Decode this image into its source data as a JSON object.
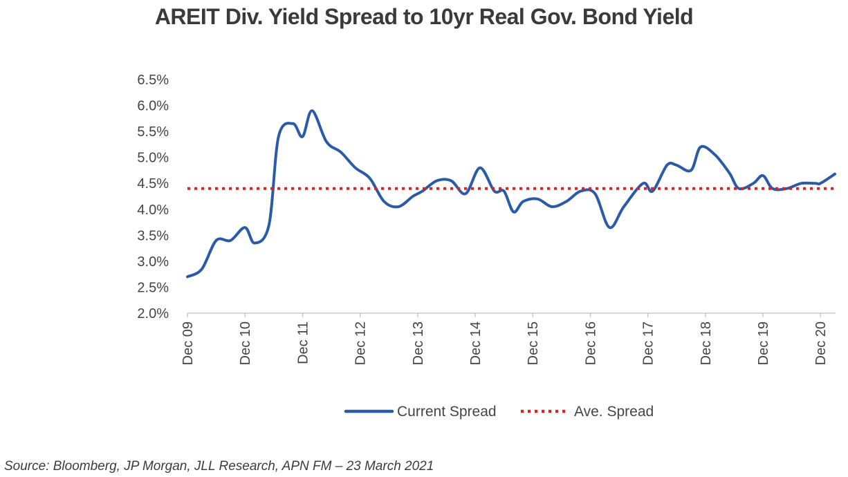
{
  "chart_data": {
    "type": "line",
    "title": "AREIT Div. Yield Spread to 10yr Real Gov. Bond Yield",
    "xlabel": "",
    "ylabel": "",
    "ylim": [
      2.0,
      6.5
    ],
    "yticks": [
      "2.0%",
      "2.5%",
      "3.0%",
      "3.5%",
      "4.0%",
      "4.5%",
      "5.0%",
      "5.5%",
      "6.0%",
      "6.5%"
    ],
    "xlim": [
      "Dec 09",
      "Mar 21"
    ],
    "xticks": [
      "Dec 09",
      "Dec 10",
      "Dec 11",
      "Dec 12",
      "Dec 13",
      "Dec 14",
      "Dec 15",
      "Dec 16",
      "Dec 17",
      "Dec 18",
      "Dec 19",
      "Dec 20"
    ],
    "grid": false,
    "legend_placement": "bottom",
    "series": [
      {
        "name": "Current Spread",
        "color": "#2a5ba8",
        "style": "solid",
        "x": [
          "Dec 09",
          "Mar 10",
          "Jun 10",
          "Sep 10",
          "Dec 10",
          "Feb 11",
          "May 11",
          "Jul 11",
          "Oct 11",
          "Dec 11",
          "Feb 12",
          "May 12",
          "Aug 12",
          "Nov 12",
          "Feb 13",
          "May 13",
          "Aug 13",
          "Nov 13",
          "Jan 14",
          "Apr 14",
          "Jul 14",
          "Oct 14",
          "Jan 15",
          "Apr 15",
          "Jun 15",
          "Aug 15",
          "Oct 15",
          "Jan 16",
          "Apr 16",
          "Jul 16",
          "Oct 16",
          "Jan 17",
          "Apr 17",
          "Jul 17",
          "Nov 17",
          "Jan 18",
          "Apr 18",
          "Jun 18",
          "Sep 18",
          "Nov 18",
          "Feb 19",
          "May 19",
          "Jul 19",
          "Oct 19",
          "Dec 19",
          "Feb 20",
          "May 20",
          "Aug 20",
          "Nov 20",
          "Dec 20",
          "Mar 21"
        ],
        "values": [
          2.7,
          2.85,
          3.4,
          3.4,
          3.65,
          3.35,
          3.7,
          5.4,
          5.65,
          5.4,
          5.9,
          5.3,
          5.1,
          4.8,
          4.6,
          4.15,
          4.05,
          4.25,
          4.35,
          4.55,
          4.55,
          4.3,
          4.8,
          4.35,
          4.35,
          3.95,
          4.15,
          4.2,
          4.05,
          4.15,
          4.35,
          4.3,
          3.65,
          4.05,
          4.5,
          4.35,
          4.85,
          4.85,
          4.75,
          5.2,
          5.05,
          4.7,
          4.4,
          4.5,
          4.65,
          4.4,
          4.4,
          4.5,
          4.5,
          4.5,
          4.68
        ]
      },
      {
        "name": "Ave. Spread",
        "color": "#e02020",
        "style": "dotted",
        "x": [
          "Dec 09",
          "Mar 21"
        ],
        "values": [
          4.4,
          4.4
        ]
      }
    ]
  },
  "source": "Source: Bloomberg, JP Morgan, JLL Research, APN FM – 23 March 2021"
}
